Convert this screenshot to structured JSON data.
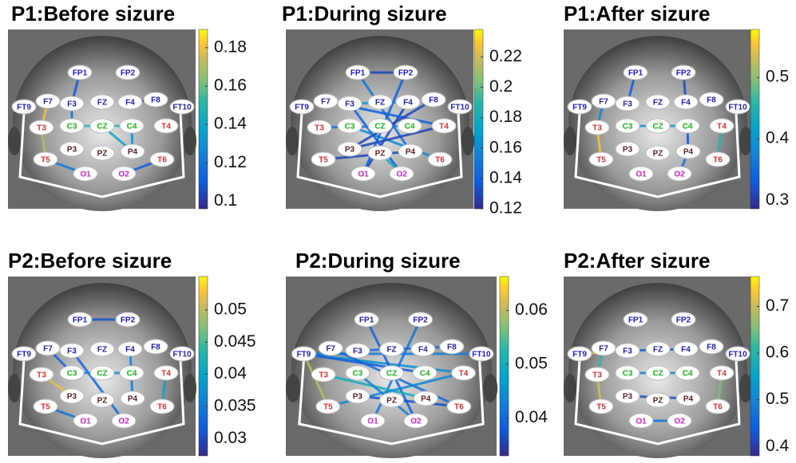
{
  "nodes": [
    "FP1",
    "FP2",
    "F7",
    "F3",
    "FZ",
    "F4",
    "F8",
    "FT9",
    "FT10",
    "T3",
    "C3",
    "CZ",
    "C4",
    "T4",
    "P3",
    "PZ",
    "P4",
    "T5",
    "T6",
    "O1",
    "O2"
  ],
  "chart_data": [
    {
      "type": "network",
      "title": "P1:Before sizure",
      "clim": [
        0.096,
        0.1895
      ],
      "cticks": [
        0.1,
        0.12,
        0.14,
        0.16,
        0.18
      ],
      "edges": [
        [
          0,
          3,
          0.11
        ],
        [
          3,
          10,
          0.12
        ],
        [
          10,
          12,
          0.15
        ],
        [
          12,
          16,
          0.13
        ],
        [
          9,
          17,
          0.17
        ],
        [
          2,
          9,
          0.18
        ],
        [
          5,
          6,
          0.1
        ],
        [
          11,
          16,
          0.14
        ],
        [
          17,
          19,
          0.12
        ],
        [
          18,
          20,
          0.11
        ]
      ]
    },
    {
      "type": "network",
      "title": "P1:During sizure",
      "clim": [
        0.12,
        0.238
      ],
      "cticks": [
        0.12,
        0.14,
        0.16,
        0.18,
        0.2,
        0.22
      ],
      "edges": [
        [
          0,
          1,
          0.13
        ],
        [
          3,
          20,
          0.14
        ],
        [
          5,
          19,
          0.13
        ],
        [
          0,
          16,
          0.15
        ],
        [
          2,
          13,
          0.14
        ],
        [
          10,
          18,
          0.16
        ],
        [
          9,
          12,
          0.15
        ],
        [
          14,
          13,
          0.13
        ],
        [
          3,
          5,
          0.17
        ],
        [
          6,
          14,
          0.13
        ],
        [
          1,
          19,
          0.14
        ],
        [
          15,
          20,
          0.18
        ],
        [
          17,
          16,
          0.13
        ]
      ]
    },
    {
      "type": "network",
      "title": "P1:After sizure",
      "clim": [
        0.286,
        0.578
      ],
      "cticks": [
        0.3,
        0.4,
        0.5
      ],
      "edges": [
        [
          0,
          3,
          0.33
        ],
        [
          1,
          5,
          0.31
        ],
        [
          9,
          17,
          0.55
        ],
        [
          10,
          12,
          0.4
        ],
        [
          12,
          16,
          0.32
        ],
        [
          16,
          20,
          0.35
        ],
        [
          13,
          18,
          0.45
        ],
        [
          2,
          9,
          0.38
        ]
      ]
    },
    {
      "type": "network",
      "title": "P2:Before sizure",
      "clim": [
        0.0273,
        0.0552
      ],
      "cticks": [
        0.03,
        0.035,
        0.04,
        0.045,
        0.05
      ],
      "edges": [
        [
          0,
          1,
          0.031
        ],
        [
          3,
          20,
          0.033
        ],
        [
          5,
          16,
          0.035
        ],
        [
          10,
          12,
          0.037
        ],
        [
          9,
          14,
          0.052
        ],
        [
          17,
          19,
          0.034
        ],
        [
          13,
          18,
          0.04
        ],
        [
          2,
          10,
          0.032
        ]
      ]
    },
    {
      "type": "network",
      "title": "P2:During sizure",
      "clim": [
        0.033,
        0.0663
      ],
      "cticks": [
        0.04,
        0.05,
        0.06
      ],
      "edges": [
        [
          7,
          8,
          0.042
        ],
        [
          7,
          13,
          0.045
        ],
        [
          7,
          12,
          0.038
        ],
        [
          2,
          18,
          0.04
        ],
        [
          0,
          20,
          0.039
        ],
        [
          1,
          19,
          0.041
        ],
        [
          9,
          16,
          0.05
        ],
        [
          17,
          13,
          0.044
        ],
        [
          14,
          18,
          0.037
        ],
        [
          3,
          6,
          0.04
        ],
        [
          7,
          17,
          0.06
        ],
        [
          10,
          20,
          0.043
        ]
      ]
    },
    {
      "type": "network",
      "title": "P2:After sizure",
      "clim": [
        0.38,
        0.764
      ],
      "cticks": [
        0.4,
        0.5,
        0.6,
        0.7
      ],
      "edges": [
        [
          7,
          3,
          0.72
        ],
        [
          2,
          9,
          0.6
        ],
        [
          3,
          5,
          0.45
        ],
        [
          9,
          17,
          0.7
        ],
        [
          10,
          12,
          0.5
        ],
        [
          14,
          16,
          0.42
        ],
        [
          13,
          18,
          0.65
        ],
        [
          19,
          20,
          0.48
        ]
      ]
    }
  ]
}
